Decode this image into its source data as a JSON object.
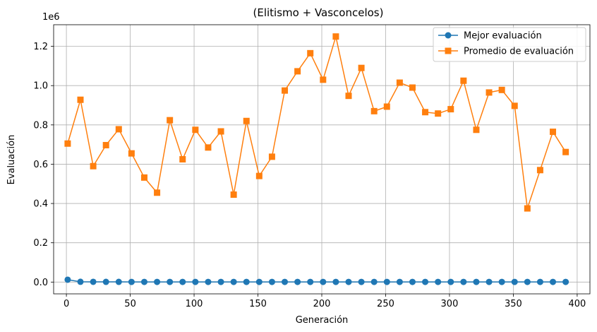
{
  "chart_data": {
    "type": "line",
    "title": "(Elitismo + Vasconcelos)",
    "xlabel": "Generación",
    "ylabel": "Evaluación",
    "y_offset_text": "1e6",
    "xlim": [
      -10,
      410
    ],
    "ylim": [
      -60000,
      1310000
    ],
    "x_ticks": [
      0,
      50,
      100,
      150,
      200,
      250,
      300,
      350,
      400
    ],
    "y_ticks": [
      0.0,
      0.2,
      0.4,
      0.6,
      0.8,
      1.0,
      1.2
    ],
    "y_tick_scale": 1000000,
    "grid": true,
    "legend_position": "top-right",
    "x": [
      1,
      11,
      21,
      31,
      41,
      51,
      61,
      71,
      81,
      91,
      101,
      111,
      121,
      131,
      141,
      151,
      161,
      171,
      181,
      191,
      201,
      211,
      221,
      231,
      241,
      251,
      261,
      271,
      281,
      291,
      301,
      311,
      321,
      331,
      341,
      351,
      361,
      371,
      381,
      391
    ],
    "series": [
      {
        "name": "Mejor evaluación",
        "color": "#1f77b4",
        "marker": "circle",
        "values": [
          12000,
          1500,
          1200,
          1000,
          1000,
          900,
          900,
          900,
          900,
          900,
          900,
          900,
          900,
          900,
          900,
          900,
          900,
          900,
          900,
          900,
          900,
          900,
          900,
          900,
          900,
          900,
          900,
          900,
          900,
          900,
          900,
          900,
          900,
          900,
          900,
          900,
          900,
          900,
          900,
          900
        ]
      },
      {
        "name": "Promedio de evaluación",
        "color": "#ff7f0e",
        "marker": "square",
        "values": [
          705000,
          928000,
          590000,
          697000,
          778000,
          655000,
          532000,
          455000,
          824000,
          625000,
          775000,
          685000,
          767000,
          445000,
          820000,
          540000,
          638000,
          975000,
          1073000,
          1165000,
          1030000,
          1250000,
          948000,
          1090000,
          870000,
          893000,
          1015000,
          990000,
          865000,
          858000,
          880000,
          1025000,
          775000,
          965000,
          978000,
          897000,
          375000,
          570000,
          765000,
          662000
        ]
      }
    ]
  }
}
